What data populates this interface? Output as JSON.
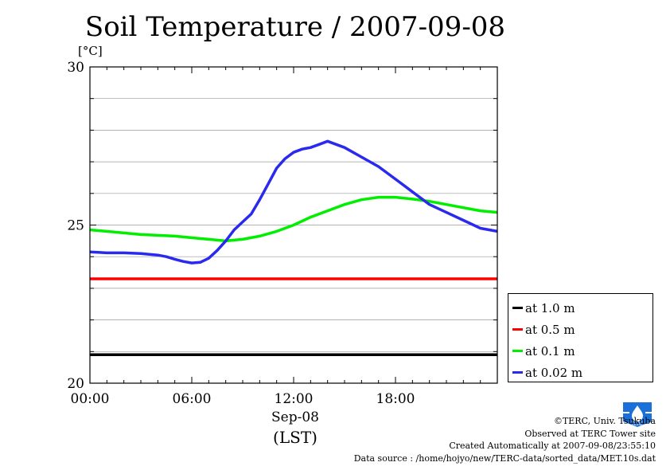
{
  "header": {
    "title": "Soil Temperature / 2007-09-08",
    "unit": "[°C]"
  },
  "xaxis": {
    "label_line1": "Sep-08",
    "label_line2": "(LST)"
  },
  "credits": {
    "copyright": "©TERC, Univ. Tsukuba",
    "site": "Observed at TERC Tower site",
    "created": "Created Automatically at 2007-09-08/23:55:10",
    "source": "Data source : /home/hojyo/new/TERC-data/sorted_data/MET.10s.dat"
  },
  "logo": {
    "text": "TERC",
    "color": "#1a6fd8"
  },
  "chart_data": {
    "type": "line",
    "title": "Soil Temperature / 2007-09-08",
    "ylabel": "[°C]",
    "xlabel": "Sep-08 (LST)",
    "xlim": [
      0,
      24
    ],
    "ylim": [
      20,
      30
    ],
    "xticks": [
      {
        "v": 0,
        "label": "00:00"
      },
      {
        "v": 6,
        "label": "06:00"
      },
      {
        "v": 12,
        "label": "12:00"
      },
      {
        "v": 18,
        "label": "18:00"
      }
    ],
    "yticks": [
      {
        "v": 20,
        "label": "20"
      },
      {
        "v": 25,
        "label": "25"
      },
      {
        "v": 30,
        "label": "30"
      }
    ],
    "grid": true,
    "legend_position": "right-bottom",
    "series": [
      {
        "name": "at 1.0 m",
        "color": "#000000",
        "x": [
          0,
          6,
          12,
          18,
          24
        ],
        "y": [
          20.9,
          20.9,
          20.9,
          20.9,
          20.9
        ]
      },
      {
        "name": "at 0.5 m",
        "color": "#ff0000",
        "x": [
          0,
          6,
          12,
          18,
          24
        ],
        "y": [
          23.3,
          23.3,
          23.3,
          23.3,
          23.3
        ]
      },
      {
        "name": "at 0.1 m",
        "color": "#00ee00",
        "x": [
          0,
          2,
          3,
          5,
          7,
          8,
          9,
          10,
          11,
          12,
          13,
          14,
          15,
          16,
          17,
          18,
          19,
          20,
          21,
          22,
          23,
          24
        ],
        "y": [
          24.85,
          24.75,
          24.7,
          24.65,
          24.55,
          24.5,
          24.55,
          24.65,
          24.8,
          25.0,
          25.25,
          25.45,
          25.65,
          25.8,
          25.88,
          25.88,
          25.82,
          25.75,
          25.65,
          25.55,
          25.45,
          25.4
        ]
      },
      {
        "name": "at 0.02 m",
        "color": "#2a2aee",
        "x": [
          0,
          1,
          2,
          3,
          4,
          4.5,
          5,
          5.5,
          6,
          6.5,
          7,
          7.5,
          8,
          8.5,
          9,
          9.5,
          10,
          10.5,
          11,
          11.5,
          12,
          12.5,
          13,
          13.5,
          14,
          15,
          16,
          17,
          18,
          19,
          20,
          21,
          22,
          23,
          24
        ],
        "y": [
          24.15,
          24.12,
          24.12,
          24.1,
          24.05,
          24.0,
          23.92,
          23.85,
          23.8,
          23.82,
          23.95,
          24.2,
          24.5,
          24.85,
          25.1,
          25.35,
          25.8,
          26.3,
          26.8,
          27.1,
          27.3,
          27.4,
          27.45,
          27.55,
          27.65,
          27.45,
          27.15,
          26.85,
          26.45,
          26.05,
          25.65,
          25.4,
          25.15,
          24.9,
          24.8
        ]
      }
    ]
  }
}
